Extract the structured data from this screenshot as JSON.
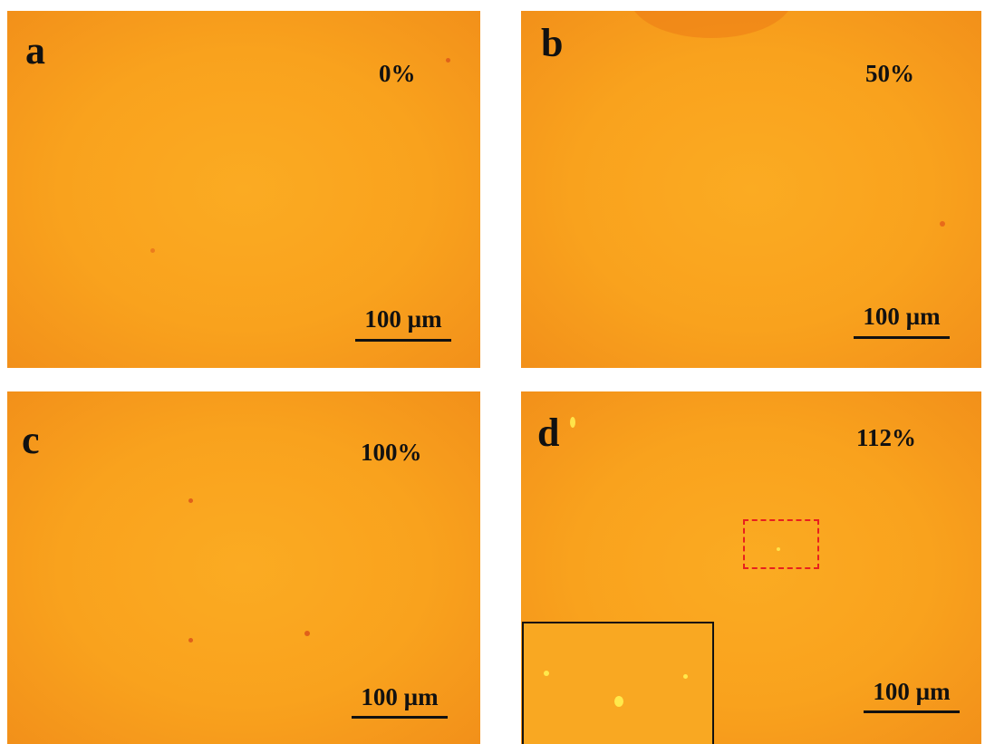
{
  "panels": [
    {
      "letter": "a",
      "strain": "0%",
      "scale": "100 µm"
    },
    {
      "letter": "b",
      "strain": "50%",
      "scale": "100 µm"
    },
    {
      "letter": "c",
      "strain": "100%",
      "scale": "100 µm"
    },
    {
      "letter": "d",
      "strain": "112%",
      "scale": "100 µm"
    }
  ]
}
